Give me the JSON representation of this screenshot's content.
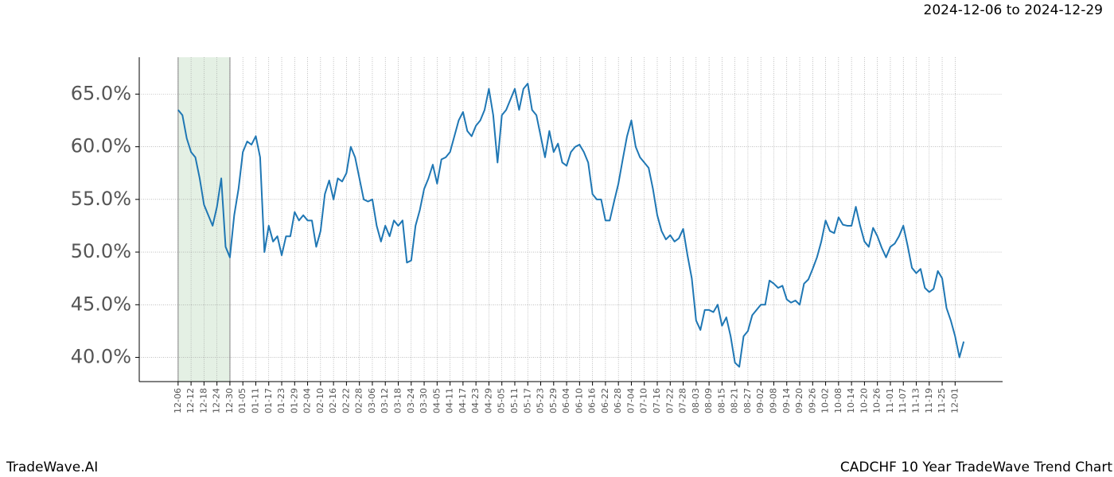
{
  "header": {
    "date_range": "2024-12-06 to 2024-12-29"
  },
  "footer": {
    "left": "TradeWave.AI",
    "right": "CADCHF 10 Year TradeWave Trend Chart"
  },
  "chart_data": {
    "type": "line",
    "color": "#1f77b4",
    "grid": true,
    "highlight": {
      "start": "12-06",
      "end": "12-30",
      "color": "#d9ead9"
    },
    "ylim": [
      37.7,
      68.5
    ],
    "yticks": [
      {
        "value": 40,
        "label": "40.0%"
      },
      {
        "value": 45,
        "label": "45.0%"
      },
      {
        "value": 50,
        "label": "50.0%"
      },
      {
        "value": 55,
        "label": "55.0%"
      },
      {
        "value": 60,
        "label": "60.0%"
      },
      {
        "value": 65,
        "label": "65.0%"
      }
    ],
    "categories": [
      "12-06",
      null,
      null,
      "12-12",
      null,
      null,
      "12-18",
      null,
      null,
      "12-24",
      null,
      null,
      "12-30",
      null,
      null,
      "01-05",
      null,
      null,
      "01-11",
      null,
      null,
      "01-17",
      null,
      null,
      "01-23",
      null,
      null,
      "01-29",
      null,
      null,
      "02-04",
      null,
      null,
      "02-10",
      null,
      null,
      "02-16",
      null,
      null,
      "02-22",
      null,
      null,
      "02-28",
      null,
      null,
      "03-06",
      null,
      null,
      "03-12",
      null,
      null,
      "03-18",
      null,
      null,
      "03-24",
      null,
      null,
      "03-30",
      null,
      null,
      "04-05",
      null,
      null,
      "04-11",
      null,
      null,
      "04-17",
      null,
      null,
      "04-23",
      null,
      null,
      "04-29",
      null,
      null,
      "05-05",
      null,
      null,
      "05-11",
      null,
      null,
      "05-17",
      null,
      null,
      "05-23",
      null,
      null,
      "05-29",
      null,
      null,
      "06-04",
      null,
      null,
      "06-10",
      null,
      null,
      "06-16",
      null,
      null,
      "06-22",
      null,
      null,
      "06-28",
      null,
      null,
      "07-04",
      null,
      null,
      "07-10",
      null,
      null,
      "07-16",
      null,
      null,
      "07-22",
      null,
      null,
      "07-28",
      null,
      null,
      "08-03",
      null,
      null,
      "08-09",
      null,
      null,
      "08-15",
      null,
      null,
      "08-21",
      null,
      null,
      "08-27",
      null,
      null,
      "09-02",
      null,
      null,
      "09-08",
      null,
      null,
      "09-14",
      null,
      null,
      "09-20",
      null,
      null,
      "09-26",
      null,
      null,
      "10-02",
      null,
      null,
      "10-08",
      null,
      null,
      "10-14",
      null,
      null,
      "10-20",
      null,
      null,
      "10-26",
      null,
      null,
      "11-01",
      null,
      null,
      "11-07",
      null,
      null,
      "11-13",
      null,
      null,
      "11-19",
      null,
      null,
      "11-25",
      null,
      null,
      "12-01",
      null,
      null
    ],
    "values": [
      63.5,
      63,
      60.8,
      59.5,
      59,
      57,
      54.5,
      53.5,
      52.5,
      54.3,
      57,
      50.5,
      49.5,
      53.5,
      56,
      59.5,
      60.5,
      60.2,
      61,
      59,
      50,
      52.5,
      51,
      51.5,
      49.7,
      51.5,
      51.5,
      53.8,
      53,
      53.5,
      53,
      53,
      50.5,
      52,
      55.5,
      56.8,
      55,
      57,
      56.7,
      57.5,
      60,
      59,
      57,
      55,
      54.8,
      55,
      52.5,
      51,
      52.5,
      51.5,
      53,
      52.5,
      53,
      49,
      49.2,
      52.5,
      54,
      56,
      57,
      58.3,
      56.5,
      58.8,
      59,
      59.5,
      61,
      62.5,
      63.3,
      61.5,
      61,
      62,
      62.5,
      63.5,
      65.5,
      63,
      58.5,
      63,
      63.5,
      64.5,
      65.5,
      63.5,
      65.5,
      66,
      63.5,
      63,
      61,
      59,
      61.5,
      59.5,
      60.3,
      58.5,
      58.2,
      59.5,
      60,
      60.2,
      59.5,
      58.5,
      55.5,
      55,
      55,
      53,
      53,
      54.8,
      56.5,
      58.8,
      61,
      62.5,
      60,
      59,
      58.5,
      58,
      56,
      53.5,
      52,
      51.2,
      51.6,
      51,
      51.3,
      52.2,
      49.7,
      47.5,
      43.5,
      42.6,
      44.5,
      44.5,
      44.3,
      45,
      43,
      43.8,
      42,
      39.5,
      39.1,
      42,
      42.5,
      44,
      44.5,
      45,
      45,
      47.3,
      47,
      46.6,
      46.8,
      45.5,
      45.2,
      45.4,
      45,
      47,
      47.4,
      48.4,
      49.5,
      51,
      53,
      52,
      51.8,
      53.3,
      52.6,
      52.5,
      52.5,
      54.3,
      52.5,
      51,
      50.5,
      52.3,
      51.5,
      50.4,
      49.5,
      50.5,
      50.8,
      51.5,
      52.5,
      50.6,
      48.5,
      48,
      48.4,
      46.6,
      46.2,
      46.5,
      48.2,
      47.5,
      44.7,
      43.5,
      42,
      40,
      41.5
    ]
  }
}
